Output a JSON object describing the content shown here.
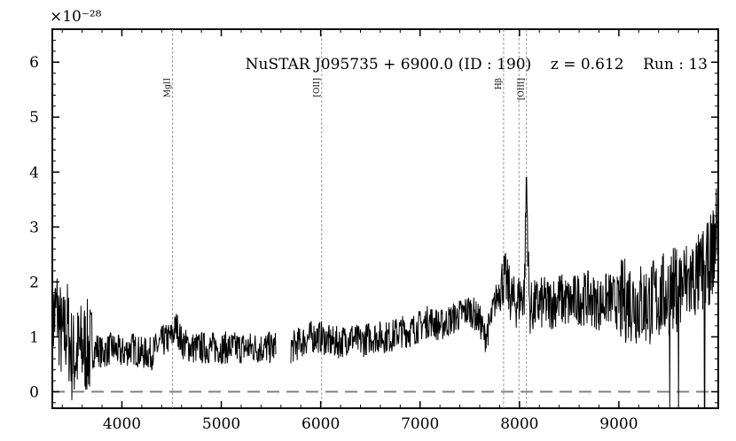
{
  "chart_data": {
    "type": "line",
    "title": "NuSTAR J095735 + 6900.0 (ID : 190)    z = 0.612    Run : 13",
    "y_scale_factor": "×10⁻²⁸",
    "xlim": [
      3300,
      10000
    ],
    "ylim": [
      -0.3,
      6.6
    ],
    "x_ticks": [
      4000,
      5000,
      6000,
      7000,
      8000,
      9000
    ],
    "y_ticks": [
      0,
      1,
      2,
      3,
      4,
      5,
      6
    ],
    "zero_line": {
      "y": 0,
      "style": "dashed",
      "color": "#808080"
    },
    "emission_lines": [
      {
        "label": "MgII",
        "x": 4510
      },
      {
        "label": "[OII]",
        "x": 6010
      },
      {
        "label": "Hβ",
        "x": 7840
      },
      {
        "label": "",
        "x": 7995
      },
      {
        "label": "[OIII]",
        "x": 8070
      }
    ],
    "gap": [
      5550,
      5700
    ],
    "series": [
      {
        "color": "#000000",
        "x": [
          3300,
          3350,
          3400,
          3450,
          3500,
          3550,
          3600,
          3650,
          3700,
          3750,
          3800,
          3900,
          4000,
          4100,
          4200,
          4300,
          4400,
          4500,
          4550,
          4600,
          4700,
          4800,
          4900,
          5000,
          5100,
          5200,
          5300,
          5400,
          5500,
          5700,
          5800,
          5900,
          6000,
          6100,
          6200,
          6300,
          6400,
          6500,
          6600,
          6700,
          6800,
          6900,
          7000,
          7100,
          7200,
          7300,
          7400,
          7500,
          7600,
          7650,
          7700,
          7750,
          7800,
          7850,
          7900,
          7950,
          8000,
          8050,
          8070,
          8100,
          8200,
          8300,
          8400,
          8500,
          8600,
          8700,
          8800,
          8900,
          9000,
          9100,
          9200,
          9300,
          9400,
          9500,
          9600,
          9700,
          9800,
          9900,
          9950,
          10000
        ],
        "y": [
          1.3,
          1.5,
          0.9,
          1.2,
          0.6,
          0.7,
          0.8,
          0.8,
          0.7,
          0.8,
          0.7,
          0.8,
          0.7,
          0.8,
          0.7,
          0.7,
          0.9,
          1.0,
          1.2,
          0.9,
          0.8,
          0.8,
          0.8,
          0.8,
          0.8,
          0.8,
          0.8,
          0.8,
          0.8,
          0.8,
          0.9,
          1.0,
          1.0,
          0.9,
          0.9,
          1.0,
          0.9,
          1.0,
          1.0,
          1.0,
          1.1,
          1.1,
          1.2,
          1.3,
          1.2,
          1.3,
          1.4,
          1.5,
          1.3,
          1.0,
          1.2,
          1.6,
          1.9,
          2.1,
          1.8,
          1.6,
          1.7,
          1.8,
          3.9,
          1.5,
          1.6,
          1.6,
          1.7,
          1.6,
          1.7,
          1.7,
          1.6,
          1.7,
          1.6,
          1.7,
          1.6,
          1.6,
          1.7,
          1.8,
          1.9,
          2.0,
          2.1,
          2.3,
          2.6,
          3.2
        ]
      }
    ]
  }
}
